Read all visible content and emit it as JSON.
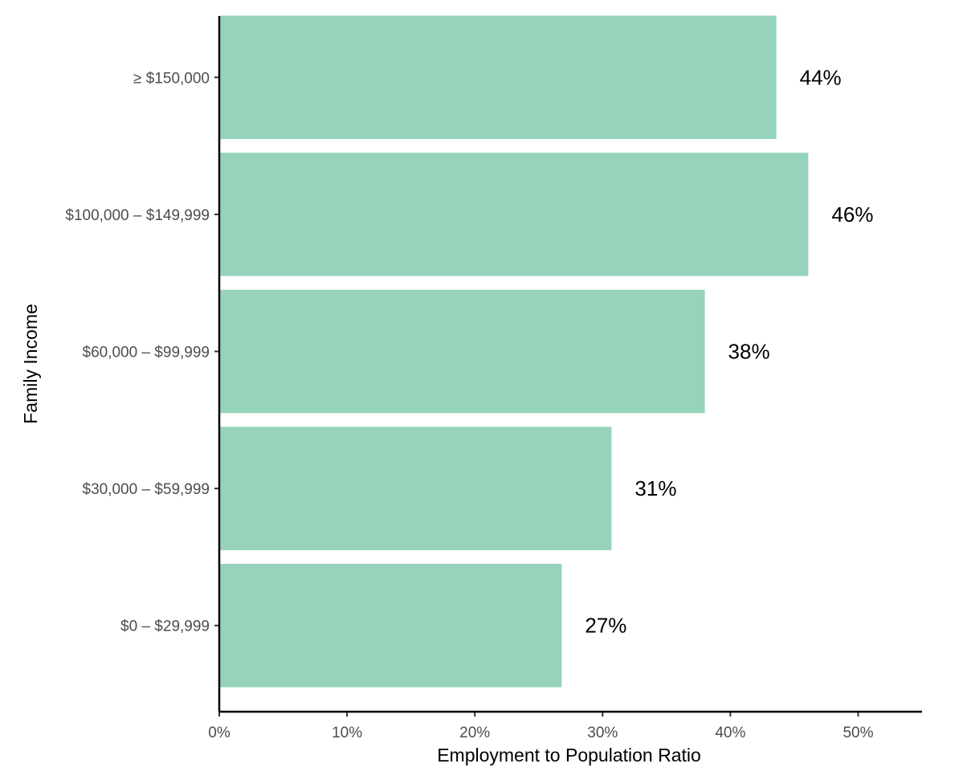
{
  "chart_data": {
    "type": "bar",
    "orientation": "horizontal",
    "categories": [
      "$0 – $29,999",
      "$30,000 – $59,999",
      "$60,000 – $99,999",
      "$100,000 – $149,999",
      "≥ $150,000"
    ],
    "values": [
      26.8,
      30.7,
      38.0,
      46.1,
      43.6
    ],
    "data_labels": [
      "27%",
      "31%",
      "38%",
      "46%",
      "44%"
    ],
    "title": "",
    "xlabel": "Employment to Population Ratio",
    "ylabel": "Family Income",
    "xlim": [
      0,
      55
    ],
    "x_ticks": [
      0,
      10,
      20,
      30,
      40,
      50
    ],
    "x_tick_labels": [
      "0%",
      "10%",
      "20%",
      "30%",
      "40%",
      "50%"
    ],
    "bar_color": "#96d3ba",
    "grid": false,
    "legend": "none"
  }
}
